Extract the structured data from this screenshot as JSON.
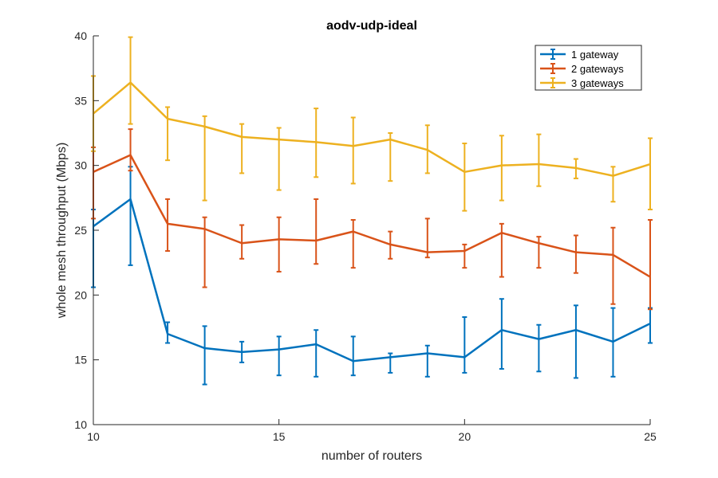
{
  "chart_data": {
    "type": "line",
    "title": "aodv-udp-ideal",
    "xlabel": "number of routers",
    "ylabel": "whole mesh throughput (Mbps)",
    "xlim": [
      10,
      25
    ],
    "ylim": [
      10,
      40
    ],
    "xticks": [
      10,
      15,
      20,
      25
    ],
    "yticks": [
      10,
      15,
      20,
      25,
      30,
      35,
      40
    ],
    "grid": false,
    "legend_position": "top-right",
    "error_bars": true,
    "x": [
      10,
      11,
      12,
      13,
      14,
      15,
      16,
      17,
      18,
      19,
      20,
      21,
      22,
      23,
      24,
      25
    ],
    "series": [
      {
        "name": "1 gateway",
        "color": "#0072BD",
        "values": [
          25.3,
          27.4,
          17.0,
          15.9,
          15.6,
          15.8,
          16.2,
          14.9,
          15.2,
          15.5,
          15.2,
          17.3,
          16.6,
          17.3,
          16.4,
          17.8
        ],
        "lower": [
          20.6,
          22.3,
          16.3,
          13.1,
          14.8,
          13.8,
          13.7,
          13.8,
          14.0,
          13.7,
          14.0,
          14.3,
          14.1,
          13.6,
          13.7,
          16.3
        ],
        "upper": [
          26.6,
          29.9,
          17.9,
          17.6,
          16.4,
          16.8,
          17.3,
          16.8,
          15.5,
          16.1,
          18.3,
          19.7,
          17.7,
          19.2,
          19.0,
          19.0
        ]
      },
      {
        "name": "2 gateways",
        "color": "#D95319",
        "values": [
          29.5,
          30.8,
          25.5,
          25.1,
          24.0,
          24.3,
          24.2,
          24.9,
          23.9,
          23.3,
          23.4,
          24.8,
          24.0,
          23.3,
          23.1,
          21.4
        ],
        "lower": [
          25.9,
          29.6,
          23.4,
          20.6,
          22.8,
          21.8,
          22.4,
          22.1,
          22.8,
          22.9,
          22.1,
          21.4,
          22.1,
          21.7,
          19.3,
          18.9
        ],
        "upper": [
          31.4,
          32.8,
          27.4,
          26.0,
          25.4,
          26.0,
          27.4,
          25.8,
          24.9,
          25.9,
          23.9,
          25.5,
          24.5,
          24.6,
          25.2,
          25.8
        ]
      },
      {
        "name": "3 gateways",
        "color": "#EDB120",
        "values": [
          34.0,
          36.4,
          33.6,
          33.0,
          32.2,
          32.0,
          31.8,
          31.5,
          32.0,
          31.2,
          29.5,
          30.0,
          30.1,
          29.8,
          29.2,
          30.1
        ],
        "lower": [
          31.1,
          33.2,
          30.4,
          27.3,
          29.4,
          28.1,
          29.1,
          28.6,
          28.8,
          29.4,
          26.5,
          27.3,
          28.4,
          29.0,
          27.2,
          26.6
        ],
        "upper": [
          36.9,
          39.9,
          34.5,
          33.8,
          33.2,
          32.9,
          34.4,
          33.7,
          32.5,
          33.1,
          31.7,
          32.3,
          32.4,
          30.5,
          29.9,
          32.1
        ]
      }
    ]
  }
}
